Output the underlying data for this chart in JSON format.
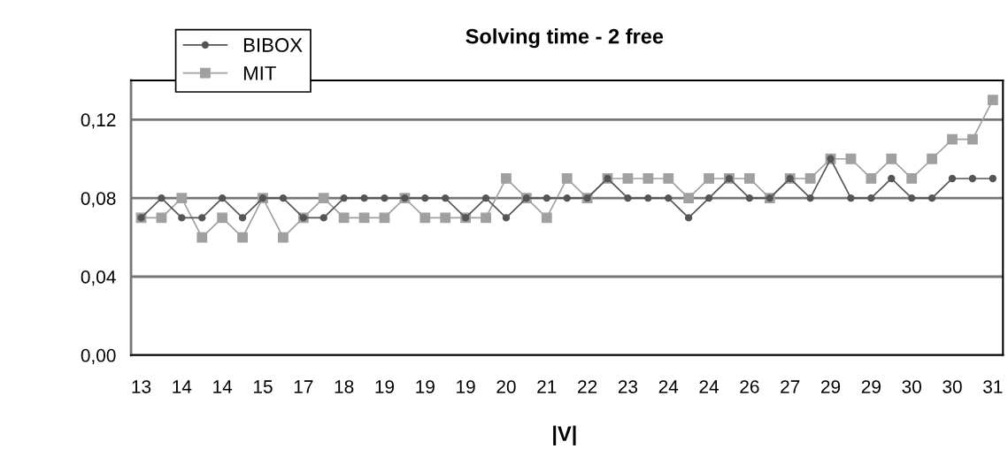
{
  "chart_data": {
    "type": "line",
    "title": "Solving time - 2 free",
    "xlabel": "|V|",
    "categories": [
      "13",
      null,
      "14",
      null,
      "14",
      null,
      "15",
      null,
      "17",
      null,
      "18",
      null,
      "19",
      null,
      "19",
      null,
      "19",
      null,
      "20",
      null,
      "21",
      null,
      "22",
      null,
      "23",
      null,
      "24",
      null,
      "24",
      null,
      "26",
      null,
      "27",
      null,
      "29",
      null,
      "29",
      null,
      "30",
      null,
      "30",
      null,
      "31"
    ],
    "series": [
      {
        "name": "BIBOX",
        "color": "#555555",
        "marker": "circle",
        "values": [
          0.07,
          0.08,
          0.07,
          0.07,
          0.08,
          0.07,
          0.08,
          0.08,
          0.07,
          0.07,
          0.08,
          0.08,
          0.08,
          0.08,
          0.08,
          0.08,
          0.07,
          0.08,
          0.07,
          0.08,
          0.08,
          0.08,
          0.08,
          0.09,
          0.08,
          0.08,
          0.08,
          0.07,
          0.08,
          0.09,
          0.08,
          0.08,
          0.09,
          0.08,
          0.1,
          0.08,
          0.08,
          0.09,
          0.08,
          0.08,
          0.09,
          0.09,
          0.09
        ]
      },
      {
        "name": "MIT",
        "color": "#a0a0a0",
        "marker": "square",
        "values": [
          0.07,
          0.07,
          0.08,
          0.06,
          0.07,
          0.06,
          0.08,
          0.06,
          0.07,
          0.08,
          0.07,
          0.07,
          0.07,
          0.08,
          0.07,
          0.07,
          0.07,
          0.07,
          0.09,
          0.08,
          0.07,
          0.09,
          0.08,
          0.09,
          0.09,
          0.09,
          0.09,
          0.08,
          0.09,
          0.09,
          0.09,
          0.08,
          0.09,
          0.09,
          0.1,
          0.1,
          0.09,
          0.1,
          0.09,
          0.1,
          0.11,
          0.11,
          0.13
        ]
      }
    ],
    "ylim": [
      0,
      0.14
    ],
    "yticks": [
      {
        "value": 0,
        "label": "0,00"
      },
      {
        "value": 0.04,
        "label": "0,04"
      },
      {
        "value": 0.08,
        "label": "0,08"
      },
      {
        "value": 0.12,
        "label": "0,12"
      }
    ],
    "grid": "y",
    "legend": "top left",
    "line_style": "solid"
  }
}
